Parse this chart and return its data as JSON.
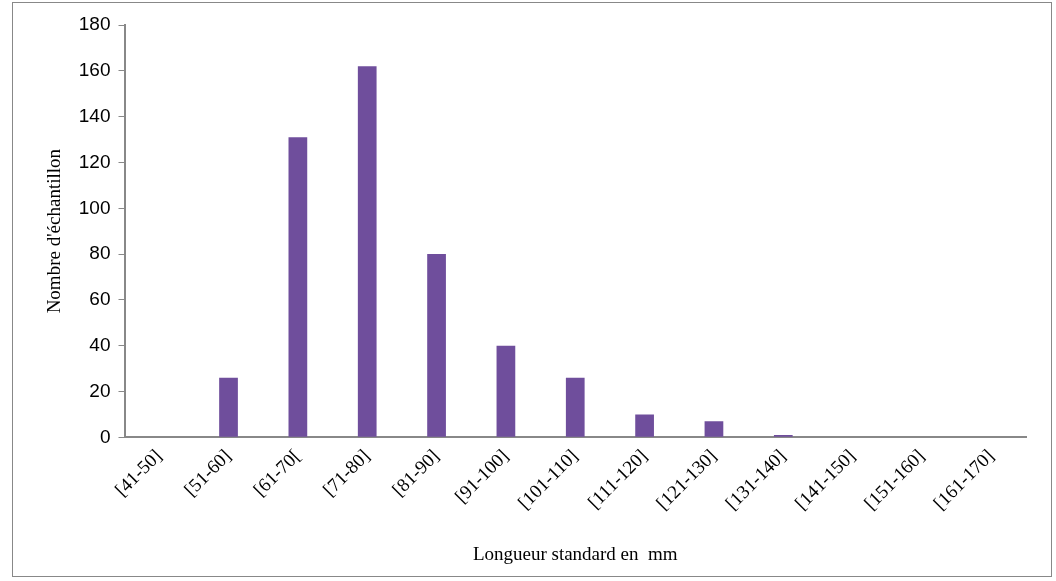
{
  "chart_data": {
    "type": "bar",
    "xlabel": "Longueur standard en  mm",
    "ylabel": "Nombre d'échantillon",
    "categories": [
      "[41-50]",
      "[51-60]",
      "[61-70[",
      "[71-80]",
      "[81-90]",
      "[91-100]",
      "[101-110]",
      "[111-120]",
      "[121-130]",
      "[131-140]",
      "[141-150]",
      "[151-160]",
      "[161-170]"
    ],
    "values": [
      0,
      26,
      131,
      162,
      80,
      40,
      26,
      10,
      7,
      1,
      0,
      0,
      0
    ],
    "color": "#6f4e9c",
    "ylim": [
      0,
      180
    ],
    "yticks": [
      0,
      20,
      40,
      60,
      80,
      100,
      120,
      140,
      160,
      180
    ],
    "grid": false,
    "legend": false
  }
}
